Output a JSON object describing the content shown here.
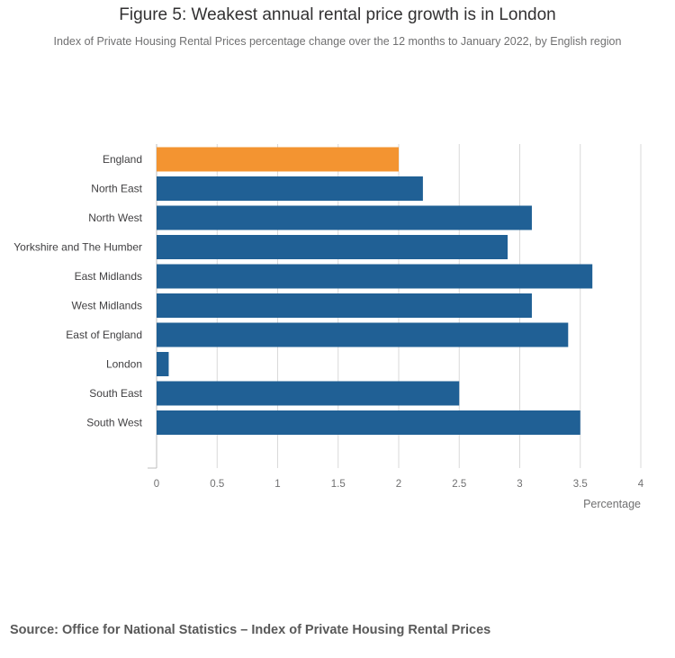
{
  "chart_data": {
    "type": "bar",
    "orientation": "horizontal",
    "title": "Figure 5: Weakest annual rental price growth is in London",
    "subtitle": "Index of Private Housing Rental Prices percentage change over the 12 months to January 2022, by English region",
    "categories": [
      "England",
      "North East",
      "North West",
      "Yorkshire and The Humber",
      "East Midlands",
      "West Midlands",
      "East of England",
      "London",
      "South East",
      "South West"
    ],
    "values": [
      2.0,
      2.2,
      3.1,
      2.9,
      3.6,
      3.1,
      3.4,
      0.1,
      2.5,
      3.5
    ],
    "xlabel": "Percentage",
    "ylabel": "",
    "xlim": [
      0,
      4
    ],
    "xticks": [
      "0",
      "0.5",
      "1",
      "1.5",
      "2",
      "2.5",
      "3",
      "3.5",
      "4"
    ],
    "grid": true,
    "legend": "none",
    "colors": {
      "highlight": "#f39431",
      "default": "#206095",
      "grid": "#d9d9d9"
    },
    "highlight_category": "England"
  },
  "source": "Source: Office for National Statistics – Index of Private Housing Rental Prices"
}
